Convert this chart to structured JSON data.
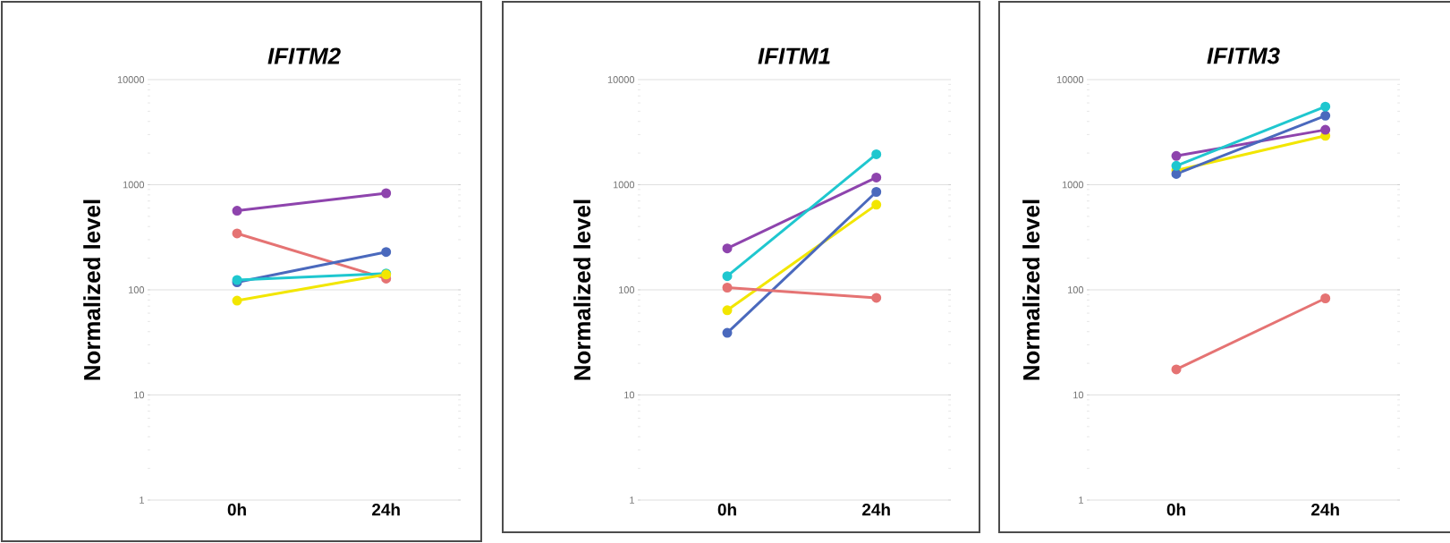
{
  "chart_data": [
    {
      "type": "line",
      "title": "*IFITM2*",
      "ylabel": "Normalized level",
      "categories": [
        "0h",
        "24h"
      ],
      "log": true,
      "grid": "y",
      "marker": "circle",
      "ylim": [
        1,
        10000
      ],
      "yticks": [
        1,
        10,
        100,
        1000,
        10000
      ],
      "series": [
        {
          "color": "#8e44ad",
          "values": [
            566,
            830
          ]
        },
        {
          "color": "#e57373",
          "values": [
            344,
            128
          ]
        },
        {
          "color": "#4a69bd",
          "values": [
            118,
            229
          ]
        },
        {
          "color": "#1fc7cf",
          "values": [
            124,
            143
          ]
        },
        {
          "color": "#f2e600",
          "values": [
            79,
            140
          ]
        }
      ]
    },
    {
      "type": "line",
      "title": "*IFITM1*",
      "ylabel": "Normalized level",
      "categories": [
        "0h",
        "24h"
      ],
      "log": true,
      "grid": "y",
      "marker": "circle",
      "ylim": [
        1,
        10000
      ],
      "yticks": [
        1,
        10,
        100,
        1000,
        10000
      ],
      "series": [
        {
          "color": "#8e44ad",
          "values": [
            248,
            1170
          ]
        },
        {
          "color": "#1fc7cf",
          "values": [
            135,
            1950
          ]
        },
        {
          "color": "#f2e600",
          "values": [
            64,
            645
          ]
        },
        {
          "color": "#4a69bd",
          "values": [
            39,
            855
          ]
        },
        {
          "color": "#e57373",
          "values": [
            105,
            84
          ]
        }
      ]
    },
    {
      "type": "line",
      "title": "*IFITM3*",
      "ylabel": "Normalized level",
      "categories": [
        "0h",
        "24h"
      ],
      "log": true,
      "grid": "y",
      "marker": "circle",
      "ylim": [
        1,
        10000
      ],
      "yticks": [
        1,
        10,
        100,
        1000,
        10000
      ],
      "series": [
        {
          "color": "#f2e600",
          "values": [
            1370,
            2920
          ]
        },
        {
          "color": "#8e44ad",
          "values": [
            1880,
            3330
          ]
        },
        {
          "color": "#4a69bd",
          "values": [
            1267,
            4540
          ]
        },
        {
          "color": "#1fc7cf",
          "values": [
            1514,
            5530
          ]
        },
        {
          "color": "#e57373",
          "values": [
            17.5,
            83
          ]
        }
      ]
    }
  ]
}
